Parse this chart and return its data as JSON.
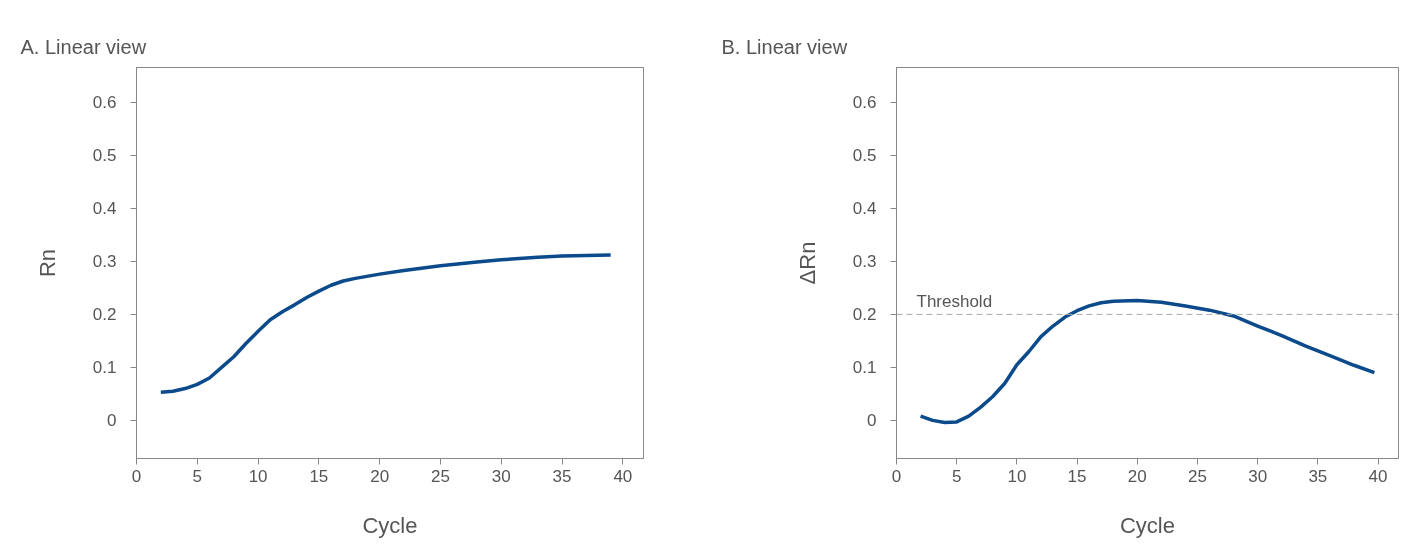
{
  "chart_data": [
    {
      "type": "line",
      "title": "A. Linear view",
      "xlabel": "Cycle",
      "ylabel": "Rn",
      "xlim": [
        0,
        41.7
      ],
      "ylim": [
        -0.072,
        0.666
      ],
      "xticks": [
        0,
        5,
        10,
        15,
        20,
        25,
        30,
        35,
        40
      ],
      "yticks": [
        0,
        0.1,
        0.2,
        0.3,
        0.4,
        0.5,
        0.6
      ],
      "grid": false,
      "series": [
        {
          "color": "#0b4a8b",
          "x": [
            2,
            3,
            4,
            5,
            6,
            7,
            8,
            9,
            10,
            11,
            12,
            13,
            14,
            15,
            16,
            17,
            18,
            20,
            22,
            25,
            28,
            30,
            33,
            35,
            37,
            39
          ],
          "values": [
            0.053,
            0.055,
            0.06,
            0.068,
            0.08,
            0.1,
            0.12,
            0.145,
            0.168,
            0.19,
            0.205,
            0.218,
            0.232,
            0.244,
            0.255,
            0.263,
            0.268,
            0.276,
            0.283,
            0.292,
            0.299,
            0.303,
            0.308,
            0.31,
            0.311,
            0.312
          ]
        }
      ]
    },
    {
      "type": "line",
      "title": "B. Linear view",
      "xlabel": "Cycle",
      "ylabel": "ΔRn",
      "xlim": [
        0,
        41.7
      ],
      "ylim": [
        -0.072,
        0.666
      ],
      "xticks": [
        0,
        5,
        10,
        15,
        20,
        25,
        30,
        35,
        40
      ],
      "yticks": [
        0,
        0.1,
        0.2,
        0.3,
        0.4,
        0.5,
        0.6
      ],
      "grid": false,
      "ref_lines": [
        {
          "axis": "y",
          "value": 0.2,
          "label": "Threshold",
          "color": "#aaaaaa",
          "line_style": "dashed"
        }
      ],
      "series": [
        {
          "color": "#0b4a8b",
          "x": [
            2,
            3,
            4,
            5,
            6,
            7,
            8,
            9,
            10,
            11,
            12,
            13,
            14,
            15,
            16,
            17,
            18,
            20,
            22,
            24,
            26,
            28,
            30,
            32,
            34,
            36,
            38,
            39.7
          ],
          "values": [
            0.008,
            0.0,
            -0.004,
            -0.003,
            0.008,
            0.025,
            0.045,
            0.07,
            0.105,
            0.13,
            0.158,
            0.178,
            0.195,
            0.207,
            0.216,
            0.222,
            0.225,
            0.226,
            0.223,
            0.216,
            0.208,
            0.197,
            0.178,
            0.16,
            0.14,
            0.122,
            0.104,
            0.09
          ]
        }
      ]
    }
  ]
}
